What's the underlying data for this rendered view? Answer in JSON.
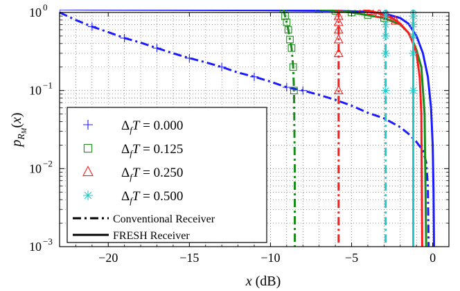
{
  "chart_data": {
    "type": "line",
    "xlabel": "x (dB)",
    "ylabel": "p_{R_M}(x)",
    "y_scale": "log",
    "xlim": [
      -23,
      1
    ],
    "ylim": [
      0.001,
      1
    ],
    "xticks": [
      -20,
      -15,
      -10,
      -5,
      0
    ],
    "xtick_labels": [
      "−20",
      "−15",
      "−10",
      "−5",
      "0"
    ],
    "yticks": [
      {
        "value": 1,
        "base": "10",
        "exp": "0"
      },
      {
        "value": 0.1,
        "base": "10",
        "exp": "−1"
      },
      {
        "value": 0.01,
        "base": "10",
        "exp": "−2"
      },
      {
        "value": 0.001,
        "base": "10",
        "exp": "−3"
      }
    ],
    "grid": "dotted",
    "legend_placement": "bottom-left",
    "legend": {
      "series_entries": [
        {
          "label": "Δ_f T = 0.000",
          "marker": "plus",
          "color": "#1a1aff"
        },
        {
          "label": "Δ_f T = 0.125",
          "marker": "square",
          "color": "#1a8c1a"
        },
        {
          "label": "Δ_f T = 0.250",
          "marker": "triangle",
          "color": "#ff1a1a"
        },
        {
          "label": "Δ_f T = 0.500",
          "marker": "asterisk",
          "color": "#22c7c7"
        }
      ],
      "style_entries": [
        {
          "label": "Conventional Receiver",
          "style": "dashdot"
        },
        {
          "label": "FRESH Receiver",
          "style": "solid"
        }
      ]
    },
    "series": [
      {
        "name": "Δ_f T = 0.000",
        "color": "#1a1aff",
        "conventional": [
          [
            -23,
            1.0
          ],
          [
            -22,
            0.8
          ],
          [
            -21,
            0.66
          ],
          [
            -20,
            0.56
          ],
          [
            -19,
            0.47
          ],
          [
            -18,
            0.41
          ],
          [
            -17,
            0.35
          ],
          [
            -16,
            0.3
          ],
          [
            -15,
            0.26
          ],
          [
            -14,
            0.23
          ],
          [
            -13,
            0.2
          ],
          [
            -12,
            0.17
          ],
          [
            -11,
            0.15
          ],
          [
            -10,
            0.13
          ],
          [
            -9,
            0.11
          ],
          [
            -8,
            0.1
          ],
          [
            -7,
            0.088
          ],
          [
            -6,
            0.076
          ],
          [
            -5,
            0.064
          ],
          [
            -4,
            0.052
          ],
          [
            -3,
            0.044
          ],
          [
            -2,
            0.034
          ],
          [
            -1.5,
            0.028
          ],
          [
            -1,
            0.022
          ],
          [
            -0.6,
            0.017
          ],
          [
            -0.4,
            0.012
          ],
          [
            -0.3,
            0.006
          ],
          [
            -0.25,
            0.001
          ]
        ],
        "conventional_markers": [
          [
            -23,
            1.0
          ],
          [
            -21,
            0.66
          ],
          [
            -19,
            0.47
          ],
          [
            -17,
            0.35
          ],
          [
            -15,
            0.26
          ],
          [
            -13,
            0.2
          ],
          [
            -11,
            0.15
          ],
          [
            -9,
            0.11
          ],
          [
            -8,
            0.1
          ]
        ],
        "fresh": [
          [
            -23,
            1.1
          ],
          [
            -20,
            1.09
          ],
          [
            -15,
            1.08
          ],
          [
            -10,
            1.07
          ],
          [
            -6,
            1.05
          ],
          [
            -4,
            1.02
          ],
          [
            -3,
            0.97
          ],
          [
            -2,
            0.85
          ],
          [
            -1.5,
            0.72
          ],
          [
            -1,
            0.5
          ],
          [
            -0.6,
            0.3
          ],
          [
            -0.3,
            0.15
          ],
          [
            -0.1,
            0.06
          ],
          [
            0,
            0.02
          ],
          [
            0.05,
            0.005
          ],
          [
            0.08,
            0.001
          ]
        ],
        "fresh_markers": []
      },
      {
        "name": "Δ_f T = 0.125",
        "color": "#1a8c1a",
        "conventional": [
          [
            -9.2,
            1.1
          ],
          [
            -9.1,
            0.9
          ],
          [
            -9.0,
            0.75
          ],
          [
            -8.9,
            0.6
          ],
          [
            -8.8,
            0.45
          ],
          [
            -8.7,
            0.35
          ],
          [
            -8.6,
            0.2
          ],
          [
            -8.55,
            0.1
          ],
          [
            -8.5,
            0.01
          ],
          [
            -8.5,
            0.001
          ]
        ],
        "conventional_markers": [
          [
            -9.2,
            1.1
          ],
          [
            -9.1,
            0.9
          ],
          [
            -9.0,
            0.75
          ],
          [
            -8.9,
            0.6
          ],
          [
            -8.8,
            0.45
          ],
          [
            -8.7,
            0.35
          ],
          [
            -8.6,
            0.2
          ],
          [
            -8.55,
            0.1
          ]
        ],
        "fresh": [
          [
            -7,
            1.1
          ],
          [
            -5,
            1.0
          ],
          [
            -3,
            0.85
          ],
          [
            -2,
            0.7
          ],
          [
            -1.5,
            0.55
          ],
          [
            -1.2,
            0.42
          ],
          [
            -1,
            0.33
          ],
          [
            -0.7,
            0.2
          ],
          [
            -0.5,
            0.05
          ],
          [
            -0.4,
            0.001
          ]
        ],
        "fresh_markers": [
          [
            -7,
            1.1
          ],
          [
            -6,
            1.05
          ],
          [
            -5,
            1.0
          ],
          [
            -4,
            0.93
          ],
          [
            -3,
            0.85
          ]
        ]
      },
      {
        "name": "Δ_f T = 0.250",
        "color": "#ff1a1a",
        "conventional": [
          [
            -5.8,
            1.1
          ],
          [
            -5.8,
            0.9
          ],
          [
            -5.8,
            0.75
          ],
          [
            -5.8,
            0.6
          ],
          [
            -5.8,
            0.45
          ],
          [
            -5.8,
            0.3
          ],
          [
            -5.8,
            0.1
          ],
          [
            -5.8,
            0.001
          ]
        ],
        "conventional_markers": [
          [
            -5.8,
            1.1
          ],
          [
            -5.8,
            0.9
          ],
          [
            -5.8,
            0.75
          ],
          [
            -5.8,
            0.6
          ],
          [
            -5.8,
            0.45
          ],
          [
            -5.8,
            0.3
          ],
          [
            -5.8,
            0.1
          ]
        ],
        "fresh": [
          [
            -4.3,
            1.1
          ],
          [
            -3.5,
            1.0
          ],
          [
            -2.5,
            0.85
          ],
          [
            -2,
            0.72
          ],
          [
            -1.5,
            0.55
          ],
          [
            -1.2,
            0.4
          ],
          [
            -1,
            0.3
          ],
          [
            -0.8,
            0.15
          ],
          [
            -0.7,
            0.05
          ],
          [
            -0.65,
            0.001
          ]
        ],
        "fresh_markers": [
          [
            -4.3,
            1.1
          ],
          [
            -3.8,
            1.05
          ],
          [
            -3.3,
            0.97
          ],
          [
            -2.8,
            0.9
          ],
          [
            -2.3,
            0.78
          ]
        ]
      },
      {
        "name": "Δ_f T = 0.500",
        "color": "#22c7c7",
        "conventional": [
          [
            -2.9,
            1.1
          ],
          [
            -2.9,
            0.001
          ]
        ],
        "conventional_markers": [
          [
            -2.9,
            1.1
          ],
          [
            -2.9,
            0.9
          ],
          [
            -2.9,
            0.7
          ],
          [
            -2.9,
            0.5
          ],
          [
            -2.9,
            0.3
          ],
          [
            -2.9,
            0.1
          ]
        ],
        "fresh": [
          [
            -1.2,
            1.1
          ],
          [
            -1.2,
            0.001
          ]
        ],
        "fresh_markers": [
          [
            -1.2,
            1.1
          ],
          [
            -1.2,
            0.9
          ],
          [
            -1.2,
            0.7
          ],
          [
            -1.2,
            0.5
          ],
          [
            -1.2,
            0.3
          ],
          [
            -1.2,
            0.1
          ]
        ]
      }
    ]
  }
}
